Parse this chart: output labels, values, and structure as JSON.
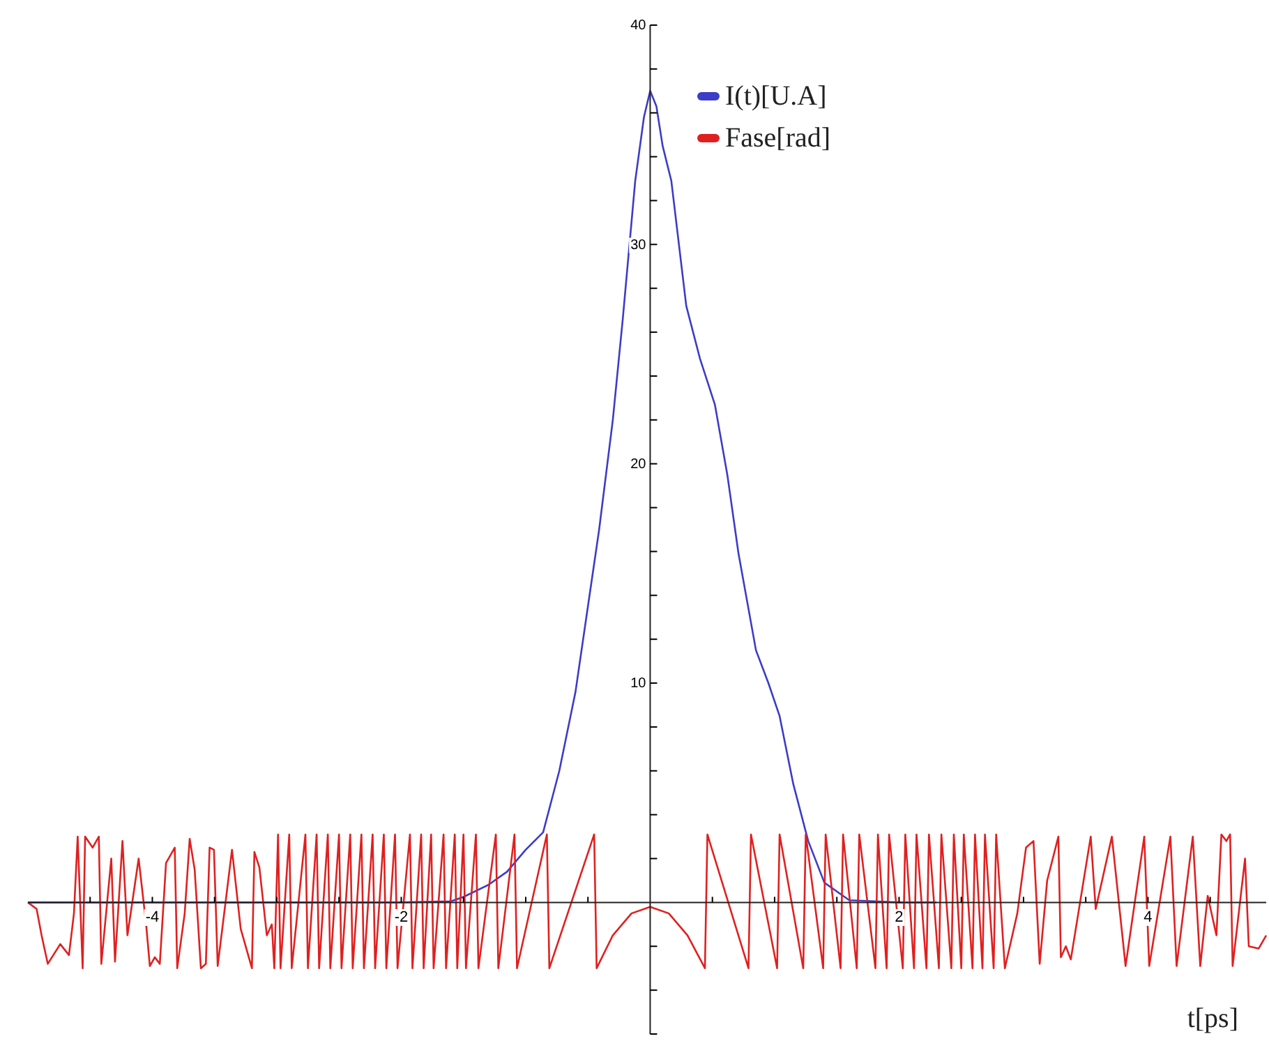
{
  "chart_data": {
    "type": "line",
    "xlabel": "t[ps]",
    "xlim": [
      -5,
      4.95
    ],
    "ylim": [
      -6,
      40
    ],
    "xticks": [
      {
        "value": -4.5,
        "label": null
      },
      -4,
      {
        "value": -3.5,
        "label": null
      },
      {
        "value": -3,
        "label": null
      },
      {
        "value": -2.5,
        "label": null
      },
      -2,
      {
        "value": -1.5,
        "label": null
      },
      {
        "value": -1,
        "label": null
      },
      {
        "value": -0.5,
        "label": null
      },
      {
        "value": 0.5,
        "label": null
      },
      {
        "value": 1,
        "label": null
      },
      {
        "value": 1.5,
        "label": null
      },
      2,
      {
        "value": 2.5,
        "label": null
      },
      {
        "value": 3,
        "label": null
      },
      {
        "value": 3.5,
        "label": null
      },
      4,
      {
        "value": 4.5,
        "label": null
      }
    ],
    "yticks": [
      {
        "value": -6,
        "label": null
      },
      {
        "value": -4,
        "label": null
      },
      {
        "value": -2,
        "label": null
      },
      {
        "value": 2,
        "label": null
      },
      {
        "value": 4,
        "label": null
      },
      {
        "value": 6,
        "label": null
      },
      {
        "value": 8,
        "label": null
      },
      10,
      {
        "value": 12,
        "label": null
      },
      {
        "value": 14,
        "label": null
      },
      {
        "value": 16,
        "label": null
      },
      {
        "value": 18,
        "label": null
      },
      20,
      {
        "value": 22,
        "label": null
      },
      {
        "value": 24,
        "label": null
      },
      {
        "value": 26,
        "label": null
      },
      {
        "value": 28,
        "label": null
      },
      30,
      {
        "value": 32,
        "label": null
      },
      {
        "value": 34,
        "label": null
      },
      {
        "value": 36,
        "label": null
      },
      {
        "value": 38,
        "label": null
      },
      40
    ],
    "legend": "top",
    "grid": false,
    "marker": "none",
    "line_style": "solid",
    "series": [
      {
        "name": "I(t)[U.A]",
        "color": "#3c3cc8",
        "x": [
          -5,
          -2,
          -1.6,
          -1.5,
          -1.3,
          -1.15,
          -1.0,
          -0.86,
          -0.73,
          -0.6,
          -0.5,
          -0.41,
          -0.3,
          -0.22,
          -0.12,
          -0.05,
          0,
          0.05,
          0.1,
          0.17,
          0.29,
          0.4,
          0.52,
          0.62,
          0.71,
          0.85,
          0.95,
          1.04,
          1.15,
          1.27,
          1.4,
          1.6,
          2,
          2.3
        ],
        "values": [
          0,
          0,
          0.05,
          0.25,
          0.8,
          1.4,
          2.4,
          3.2,
          6.0,
          9.6,
          13.5,
          17,
          22,
          26.6,
          32.9,
          35.8,
          37,
          36.3,
          34.5,
          32.9,
          27.2,
          24.8,
          22.7,
          19.5,
          15.9,
          11.5,
          10.0,
          8.5,
          5.4,
          2.8,
          0.9,
          0.1,
          0,
          0
        ]
      },
      {
        "name": "Fase[rad]",
        "color": "#e02020",
        "x": [
          -5.0,
          -4.93,
          -4.89,
          -4.84,
          -4.74,
          -4.67,
          -4.63,
          -4.6,
          -4.56,
          -4.54,
          -4.48,
          -4.43,
          -4.41,
          -4.33,
          -4.3,
          -4.24,
          -4.2,
          -4.11,
          -4.05,
          -4.02,
          -3.98,
          -3.94,
          -3.89,
          -3.82,
          -3.8,
          -3.74,
          -3.7,
          -3.66,
          -3.61,
          -3.57,
          -3.54,
          -3.505,
          -3.475,
          -3.36,
          -3.29,
          -3.2,
          -3.18,
          -3.14,
          -3.08,
          -3.04,
          -3.02,
          -2.99,
          -2.97,
          -2.9,
          -2.88,
          -2.77,
          -2.75,
          -2.68,
          -2.66,
          -2.59,
          -2.57,
          -2.5,
          -2.48,
          -2.41,
          -2.39,
          -2.32,
          -2.3,
          -2.23,
          -2.21,
          -2.14,
          -2.12,
          -2.05,
          -2.03,
          -1.93,
          -1.91,
          -1.84,
          -1.82,
          -1.76,
          -1.74,
          -1.66,
          -1.64,
          -1.57,
          -1.55,
          -1.5,
          -1.48,
          -1.4,
          -1.38,
          -1.24,
          -1.22,
          -1.09,
          -1.07,
          -0.83,
          -0.81,
          -0.45,
          -0.43,
          -0.3,
          -0.15,
          0,
          0.15,
          0.3,
          0.44,
          0.46,
          0.79,
          0.81,
          1.02,
          1.04,
          1.23,
          1.25,
          1.39,
          1.41,
          1.53,
          1.55,
          1.66,
          1.68,
          1.81,
          1.83,
          1.9,
          1.92,
          2.03,
          2.05,
          2.12,
          2.14,
          2.22,
          2.24,
          2.32,
          2.34,
          2.42,
          2.44,
          2.5,
          2.52,
          2.59,
          2.61,
          2.67,
          2.69,
          2.76,
          2.78,
          2.85,
          2.95,
          3.02,
          3.08,
          3.13,
          3.19,
          3.28,
          3.3,
          3.34,
          3.38,
          3.54,
          3.58,
          3.71,
          3.82,
          3.97,
          4.01,
          4.18,
          4.23,
          4.36,
          4.42,
          4.48,
          4.55,
          4.59,
          4.63,
          4.66,
          4.68,
          4.78,
          4.81,
          4.89,
          4.95
        ],
        "values": [
          0,
          -0.3,
          -1.5,
          -2.8,
          -1.9,
          -2.4,
          -0.5,
          3.0,
          -3.0,
          3.0,
          2.5,
          3.0,
          -2.8,
          2.0,
          -2.7,
          2.8,
          -1.5,
          2.0,
          -1.0,
          -2.9,
          -2.5,
          -2.8,
          1.8,
          2.5,
          -3.0,
          -0.5,
          2.9,
          1.5,
          -3.0,
          -2.8,
          2.5,
          2.4,
          -2.9,
          2.4,
          -1.2,
          -3.0,
          2.3,
          1.6,
          -1.5,
          -1.0,
          -3.0,
          3.1,
          -3.0,
          3.1,
          -3.0,
          3.1,
          -3.0,
          3.1,
          -3.0,
          3.1,
          -3.0,
          3.1,
          -3.0,
          3.1,
          -3.0,
          3.1,
          -3.0,
          3.1,
          -3.0,
          3.1,
          -3.0,
          3.1,
          -3.0,
          3.1,
          -3.0,
          3.1,
          -3.0,
          3.1,
          -3.0,
          3.1,
          -3.0,
          3.1,
          -3.0,
          3.1,
          -3.0,
          3.1,
          -3.0,
          3.1,
          -3.0,
          3.1,
          -3.0,
          3.1,
          -3.0,
          3.1,
          -3.0,
          -1.5,
          -0.5,
          -0.2,
          -0.5,
          -1.5,
          -3.0,
          3.1,
          -3.0,
          3.1,
          -3.0,
          3.1,
          -3.0,
          3.1,
          -3.0,
          3.1,
          -3.0,
          3.1,
          -3.0,
          3.1,
          -3.0,
          3.1,
          -3.0,
          3.1,
          -3.0,
          3.1,
          -3.0,
          3.1,
          -3.0,
          3.1,
          -3.0,
          3.1,
          -3.0,
          3.1,
          -3.0,
          3.1,
          -3.0,
          3.1,
          -3.0,
          3.1,
          -3.0,
          3.1,
          -3.0,
          -0.5,
          2.5,
          2.8,
          -2.8,
          1.0,
          3.0,
          -2.5,
          -2.0,
          -2.6,
          3.0,
          -0.3,
          3.0,
          -2.9,
          3.0,
          -2.9,
          3.0,
          -2.9,
          3.0,
          -2.9,
          0.3,
          -1.5,
          3.1,
          2.8,
          3.1,
          -2.9,
          2.0,
          -2.0,
          -2.1,
          -1.5
        ]
      }
    ]
  }
}
